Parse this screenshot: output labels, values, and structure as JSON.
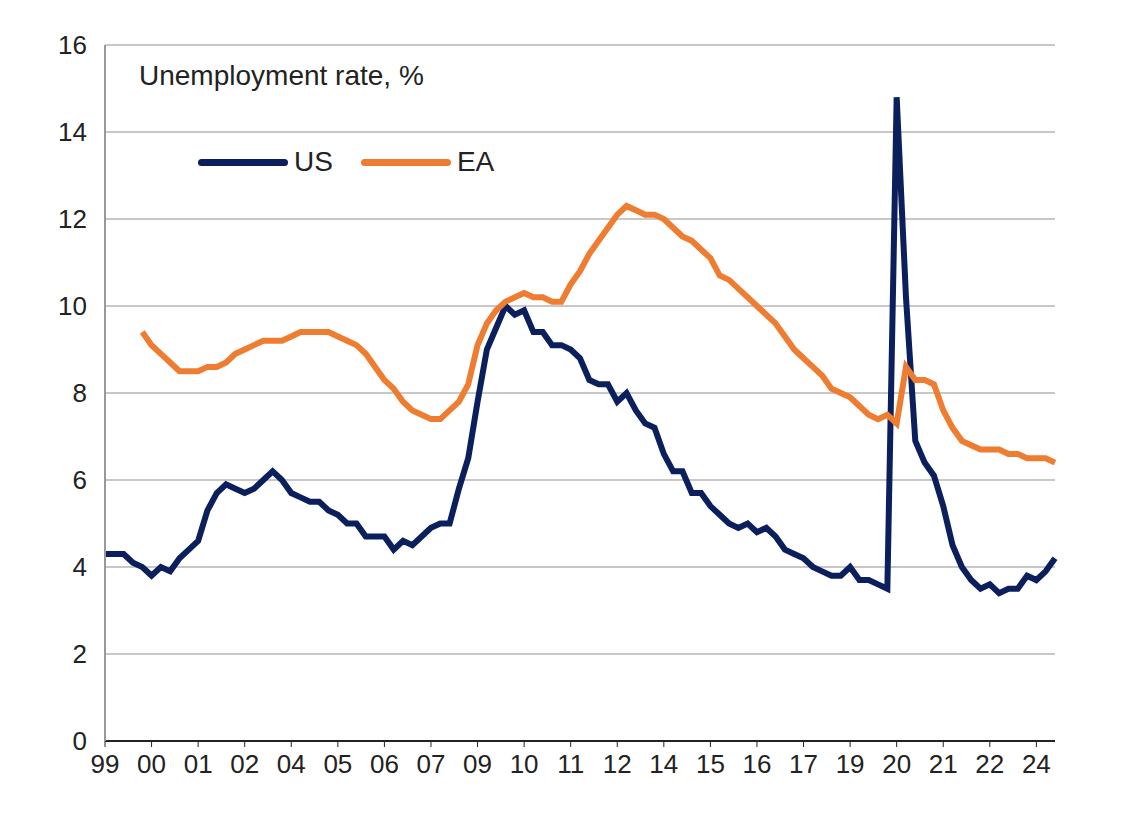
{
  "chart_data": {
    "type": "line",
    "title": "Unemployment rate, %",
    "categories": [
      "99",
      null,
      null,
      null,
      null,
      "00",
      null,
      null,
      null,
      null,
      "01",
      null,
      null,
      null,
      null,
      "02",
      null,
      null,
      null,
      null,
      "04",
      null,
      null,
      null,
      null,
      "05",
      null,
      null,
      null,
      null,
      "06",
      null,
      null,
      null,
      null,
      "07",
      null,
      null,
      null,
      null,
      "09",
      null,
      null,
      null,
      null,
      "10",
      null,
      null,
      null,
      null,
      "11",
      null,
      null,
      null,
      null,
      "12",
      null,
      null,
      null,
      null,
      "14",
      null,
      null,
      null,
      null,
      "15",
      null,
      null,
      null,
      null,
      "16",
      null,
      null,
      null,
      null,
      "17",
      null,
      null,
      null,
      null,
      "19",
      null,
      null,
      null,
      null,
      "20",
      null,
      null,
      null,
      null,
      "21",
      null,
      null,
      null,
      null,
      "22",
      null,
      null,
      null,
      null,
      "24",
      null,
      null
    ],
    "series": [
      {
        "name": "US",
        "color": "#0b1f5c",
        "values": [
          4.3,
          4.3,
          4.3,
          4.1,
          4.0,
          3.8,
          4.0,
          3.9,
          4.2,
          4.4,
          4.6,
          5.3,
          5.7,
          5.9,
          5.8,
          5.7,
          5.8,
          6.0,
          6.2,
          6.0,
          5.7,
          5.6,
          5.5,
          5.5,
          5.3,
          5.2,
          5.0,
          5.0,
          4.7,
          4.7,
          4.7,
          4.4,
          4.6,
          4.5,
          4.7,
          4.9,
          5.0,
          5.0,
          5.8,
          6.5,
          7.8,
          9.0,
          9.5,
          10.0,
          9.8,
          9.9,
          9.4,
          9.4,
          9.1,
          9.1,
          9.0,
          8.8,
          8.3,
          8.2,
          8.2,
          7.8,
          8.0,
          7.6,
          7.3,
          7.2,
          6.6,
          6.2,
          6.2,
          5.7,
          5.7,
          5.4,
          5.2,
          5.0,
          4.9,
          5.0,
          4.8,
          4.9,
          4.7,
          4.4,
          4.3,
          4.2,
          4.0,
          3.9,
          3.8,
          3.8,
          4.0,
          3.7,
          3.7,
          3.6,
          3.5,
          14.8,
          10.2,
          6.9,
          6.4,
          6.1,
          5.4,
          4.5,
          4.0,
          3.7,
          3.5,
          3.6,
          3.4,
          3.5,
          3.5,
          3.8,
          3.7,
          3.9,
          4.2
        ]
      },
      {
        "name": "EA",
        "color": "#ee7d31",
        "values": [
          null,
          null,
          null,
          null,
          9.4,
          9.1,
          8.9,
          8.7,
          8.5,
          8.5,
          8.5,
          8.6,
          8.6,
          8.7,
          8.9,
          9.0,
          9.1,
          9.2,
          9.2,
          9.2,
          9.3,
          9.4,
          9.4,
          9.4,
          9.4,
          9.3,
          9.2,
          9.1,
          8.9,
          8.6,
          8.3,
          8.1,
          7.8,
          7.6,
          7.5,
          7.4,
          7.4,
          7.6,
          7.8,
          8.2,
          9.1,
          9.6,
          9.9,
          10.1,
          10.2,
          10.3,
          10.2,
          10.2,
          10.1,
          10.1,
          10.5,
          10.8,
          11.2,
          11.5,
          11.8,
          12.1,
          12.3,
          12.2,
          12.1,
          12.1,
          12.0,
          11.8,
          11.6,
          11.5,
          11.3,
          11.1,
          10.7,
          10.6,
          10.4,
          10.2,
          10.0,
          9.8,
          9.6,
          9.3,
          9.0,
          8.8,
          8.6,
          8.4,
          8.1,
          8.0,
          7.9,
          7.7,
          7.5,
          7.4,
          7.5,
          7.3,
          8.6,
          8.3,
          8.3,
          8.2,
          7.6,
          7.2,
          6.9,
          6.8,
          6.7,
          6.7,
          6.7,
          6.6,
          6.6,
          6.5,
          6.5,
          6.5,
          6.4
        ]
      }
    ],
    "ylim": [
      0,
      16
    ],
    "yticks": [
      0,
      2,
      4,
      6,
      8,
      10,
      12,
      14,
      16
    ],
    "grid": true,
    "legend": "upper left"
  }
}
